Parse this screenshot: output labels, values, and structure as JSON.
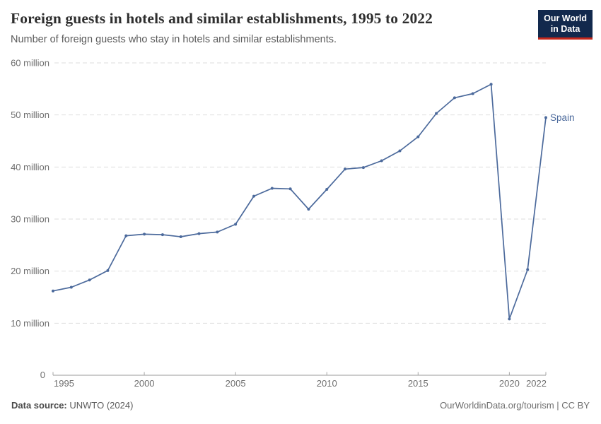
{
  "header": {
    "title": "Foreign guests in hotels and similar establishments, 1995 to 2022",
    "subtitle": "Number of foreign guests who stay in hotels and similar establishments.",
    "logo": {
      "line1": "Our World",
      "line2": "in Data",
      "bg_color": "#12294d",
      "accent_color": "#c4281c"
    }
  },
  "chart_data": {
    "type": "line",
    "title": "Foreign guests in hotels and similar establishments, 1995 to 2022",
    "unit": "million",
    "x": [
      1995,
      1996,
      1997,
      1998,
      1999,
      2000,
      2001,
      2002,
      2003,
      2004,
      2005,
      2006,
      2007,
      2008,
      2009,
      2010,
      2011,
      2012,
      2013,
      2014,
      2015,
      2016,
      2017,
      2018,
      2019,
      2020,
      2021,
      2022
    ],
    "series": [
      {
        "name": "Spain",
        "color": "#4c6a9c",
        "values": [
          16.2,
          16.9,
          18.3,
          20.1,
          26.8,
          27.1,
          27.0,
          26.6,
          27.2,
          27.5,
          29.0,
          34.4,
          35.9,
          35.8,
          31.9,
          35.7,
          39.6,
          39.9,
          41.2,
          43.1,
          45.8,
          50.3,
          53.3,
          54.1,
          55.9,
          10.8,
          20.3,
          49.5
        ]
      }
    ],
    "ylim": [
      0,
      60
    ],
    "yticks": [
      {
        "value": 0,
        "label": "0"
      },
      {
        "value": 10,
        "label": "10 million"
      },
      {
        "value": 20,
        "label": "20 million"
      },
      {
        "value": 30,
        "label": "30 million"
      },
      {
        "value": 40,
        "label": "40 million"
      },
      {
        "value": 50,
        "label": "50 million"
      },
      {
        "value": 60,
        "label": "60 million"
      }
    ],
    "xticks": [
      {
        "value": 1995,
        "label": "1995"
      },
      {
        "value": 2000,
        "label": "2000"
      },
      {
        "value": 2005,
        "label": "2005"
      },
      {
        "value": 2010,
        "label": "2010"
      },
      {
        "value": 2015,
        "label": "2015"
      },
      {
        "value": 2020,
        "label": "2020"
      },
      {
        "value": 2022,
        "label": "2022"
      }
    ],
    "grid": "dashed",
    "legend_position": "end-of-line",
    "end_label": "Spain"
  },
  "footer": {
    "source_label": "Data source:",
    "source_value": "UNWTO (2024)",
    "credit": "OurWorldinData.org/tourism | CC BY"
  }
}
